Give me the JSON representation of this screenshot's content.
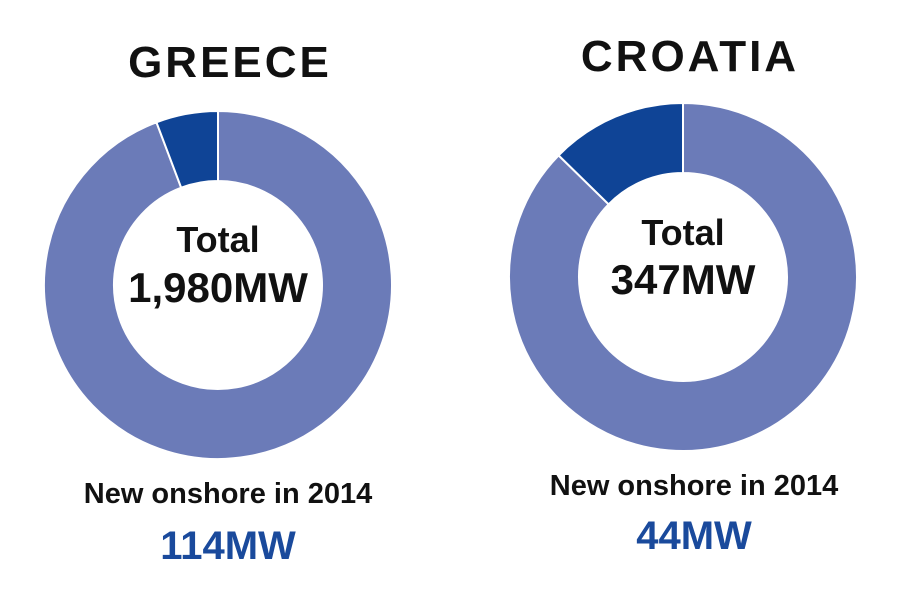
{
  "colors": {
    "remaining": "#6b7bb8",
    "new": "#0f4496",
    "value_text": "#1a4a9c"
  },
  "chart_data": [
    {
      "type": "pie",
      "title": "GREECE",
      "center_label": "Total",
      "center_value": "1,980MW",
      "total_mw": 1980,
      "new_mw": 114,
      "caption": "New onshore in 2014",
      "new_value_label": "114MW"
    },
    {
      "type": "pie",
      "title": "CROATIA",
      "center_label": "Total",
      "center_value": "347MW",
      "total_mw": 347,
      "new_mw": 44,
      "caption": "New onshore in 2014",
      "new_value_label": "44MW"
    }
  ]
}
